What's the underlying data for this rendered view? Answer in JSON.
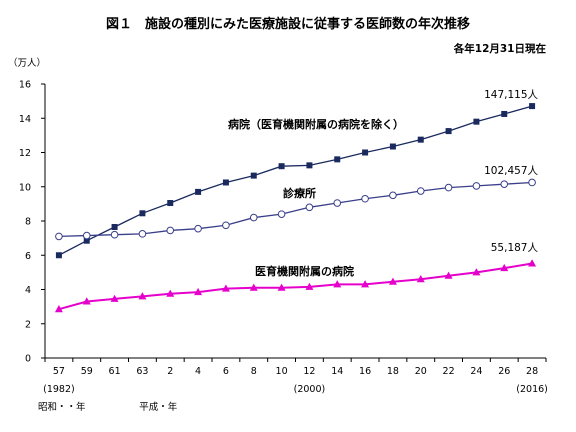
{
  "chart_data": {
    "type": "line",
    "title": "図１　施設の種別にみた医療施設に従事する医師数の年次推移",
    "subtitle": "各年12月31日現在",
    "ylabel": "（万人）",
    "ylim": [
      0,
      16
    ],
    "yticks": [
      "0",
      "2",
      "4",
      "6",
      "8",
      "10",
      "12",
      "14",
      "16"
    ],
    "x": [
      "57",
      "59",
      "61",
      "63",
      "2",
      "4",
      "6",
      "8",
      "10",
      "12",
      "14",
      "16",
      "18",
      "20",
      "22",
      "24",
      "26",
      "28"
    ],
    "x_sublabels": [
      {
        "index": 0,
        "text": "(1982)"
      },
      {
        "index": 9,
        "text": "(2000)"
      },
      {
        "index": 17,
        "text": "(2016)"
      }
    ],
    "era_labels": [
      {
        "index": 0,
        "text": "昭和・・年"
      },
      {
        "index": 4,
        "text": "平成・年"
      }
    ],
    "grid": false,
    "series": [
      {
        "name": "病院（医育機関附属の病院を除く）",
        "color": "#1a2a5e",
        "marker": "filled-square",
        "values": [
          6.0,
          6.85,
          7.65,
          8.45,
          9.05,
          9.7,
          10.25,
          10.65,
          11.2,
          11.25,
          11.6,
          12.0,
          12.35,
          12.75,
          13.25,
          13.8,
          14.25,
          14.71
        ]
      },
      {
        "name": "診療所",
        "color": "#3a3f8a",
        "marker": "open-circle",
        "values": [
          7.1,
          7.15,
          7.2,
          7.25,
          7.45,
          7.55,
          7.75,
          8.2,
          8.4,
          8.8,
          9.05,
          9.3,
          9.5,
          9.75,
          9.95,
          10.05,
          10.15,
          10.25
        ]
      },
      {
        "name": "医育機関附属の病院",
        "color": "#e600cc",
        "marker": "filled-triangle",
        "values": [
          2.85,
          3.3,
          3.45,
          3.6,
          3.75,
          3.85,
          4.05,
          4.1,
          4.1,
          4.15,
          4.3,
          4.3,
          4.45,
          4.6,
          4.8,
          5.0,
          5.25,
          5.52
        ]
      }
    ],
    "end_labels": [
      "147,115人",
      "102,457人",
      "55,187人"
    ]
  }
}
